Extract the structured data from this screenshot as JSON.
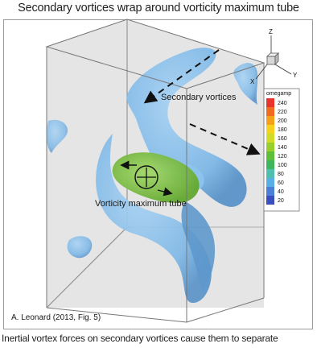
{
  "title": "Secondary vortices wrap around vorticity maximum tube",
  "caption": "Inertial vortex forces on secondary vortices cause them to separate",
  "figure": {
    "credit": "A. Leonard (2013, Fig. 5)",
    "labels": {
      "secondary": "Secondary vortices",
      "tube": "Vorticity maximum tube"
    },
    "axes": {
      "z": "Z",
      "x": "X",
      "y": "Y"
    },
    "legend": {
      "title": "omegamp",
      "levels": [
        "240",
        "220",
        "200",
        "180",
        "160",
        "140",
        "120",
        "100",
        "80",
        "60",
        "40",
        "20"
      ],
      "colors": [
        "#e8342a",
        "#f06a1f",
        "#f6a11a",
        "#f4d21e",
        "#d2dc28",
        "#98cf2c",
        "#5fbe3a",
        "#3fb55e",
        "#4fbfb0",
        "#5aaee6",
        "#4b7fd8",
        "#3a4fbf"
      ]
    },
    "colors": {
      "surface": "#7fb8e6",
      "surface_dark": "#5a93c8",
      "tube": "#7cc243",
      "box_fill": "#c9c9c9"
    }
  }
}
